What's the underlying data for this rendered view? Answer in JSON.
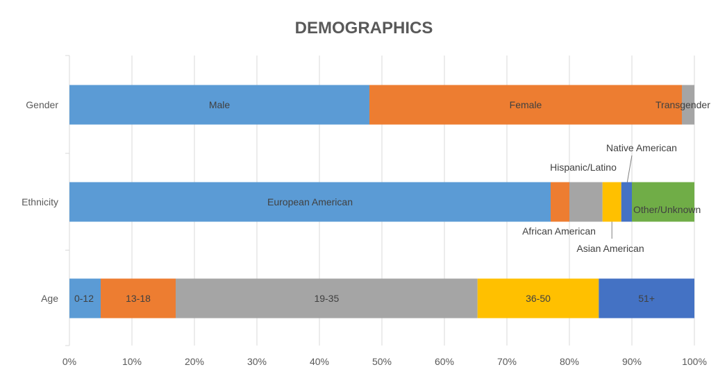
{
  "chart_data": {
    "type": "bar",
    "orientation": "horizontal",
    "stacked": "percent",
    "title": "DEMOGRAPHICS",
    "xlabel": "",
    "ylabel": "",
    "xlim": [
      0,
      100
    ],
    "x_ticks": [
      "0%",
      "10%",
      "20%",
      "30%",
      "40%",
      "50%",
      "60%",
      "70%",
      "80%",
      "90%",
      "100%"
    ],
    "grid": true,
    "legend": "none",
    "categories": [
      "Gender",
      "Ethnicity",
      "Age"
    ],
    "bars": [
      {
        "category": "Gender",
        "segments": [
          {
            "label": "Male",
            "value": 48,
            "color": "#5b9bd5"
          },
          {
            "label": "Female",
            "value": 50,
            "color": "#ed7d31"
          },
          {
            "label": "Transgender",
            "value": 2,
            "color": "#a5a5a5"
          }
        ]
      },
      {
        "category": "Ethnicity",
        "segments": [
          {
            "label": "European American",
            "value": 77,
            "color": "#5b9bd5"
          },
          {
            "label": "African American",
            "value": 3,
            "color": "#ed7d31"
          },
          {
            "label": "Hispanic/Latino",
            "value": 5.3,
            "color": "#a5a5a5"
          },
          {
            "label": "Asian American",
            "value": 3,
            "color": "#ffc000"
          },
          {
            "label": "Native American",
            "value": 1.7,
            "color": "#4472c4"
          },
          {
            "label": "Other/Unknown",
            "value": 10,
            "color": "#70ad47"
          }
        ]
      },
      {
        "category": "Age",
        "segments": [
          {
            "label": "0-12",
            "value": 5,
            "color": "#5b9bd5"
          },
          {
            "label": "13-18",
            "value": 12,
            "color": "#ed7d31"
          },
          {
            "label": "19-35",
            "value": 48.3,
            "color": "#a5a5a5"
          },
          {
            "label": "36-50",
            "value": 19.4,
            "color": "#ffc000"
          },
          {
            "label": "51+",
            "value": 15.3,
            "color": "#4472c4"
          }
        ]
      }
    ]
  }
}
